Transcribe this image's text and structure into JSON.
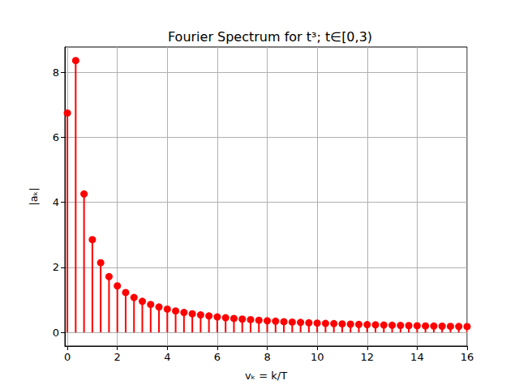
{
  "chart_data": {
    "type": "stem",
    "title": "Fourier Spectrum for t³; t∈[0,3)",
    "x_label": "vₖ = k/T",
    "y_label": "|aₖ|",
    "x": [
      0,
      0.3333,
      0.6667,
      1,
      1.3333,
      1.6667,
      2,
      2.3333,
      2.6667,
      3,
      3.3333,
      3.6667,
      4,
      4.3333,
      4.6667,
      5,
      5.3333,
      5.6667,
      6,
      6.3333,
      6.6667,
      7,
      7.3333,
      7.6667,
      8,
      8.3333,
      8.6667,
      9,
      9.3333,
      9.6667,
      10,
      10.3333,
      10.6667,
      11,
      11.3333,
      11.6667,
      12,
      12.3333,
      12.6667,
      13,
      13.3333,
      13.6667,
      14,
      14.3333,
      14.6667,
      15,
      15.3333,
      15.6667,
      16
    ],
    "values": [
      6.75,
      8.364,
      4.259,
      2.853,
      2.144,
      1.716,
      1.431,
      1.227,
      1.074,
      0.955,
      0.859,
      0.781,
      0.716,
      0.661,
      0.614,
      0.573,
      0.537,
      0.506,
      0.477,
      0.452,
      0.43,
      0.409,
      0.391,
      0.374,
      0.358,
      0.344,
      0.331,
      0.318,
      0.307,
      0.296,
      0.287,
      0.277,
      0.269,
      0.26,
      0.253,
      0.246,
      0.239,
      0.232,
      0.226,
      0.22,
      0.215,
      0.21,
      0.205,
      0.2,
      0.195,
      0.191,
      0.187,
      0.183,
      0.179
    ],
    "color": "#ff0000",
    "marker": "circle",
    "xlim": [
      -0.1,
      16
    ],
    "xticks": [
      0,
      2,
      4,
      6,
      8,
      10,
      12,
      14,
      16
    ],
    "ylim": [
      -0.42,
      8.78
    ],
    "yticks": [
      0,
      2,
      4,
      6,
      8
    ],
    "grid": true
  }
}
